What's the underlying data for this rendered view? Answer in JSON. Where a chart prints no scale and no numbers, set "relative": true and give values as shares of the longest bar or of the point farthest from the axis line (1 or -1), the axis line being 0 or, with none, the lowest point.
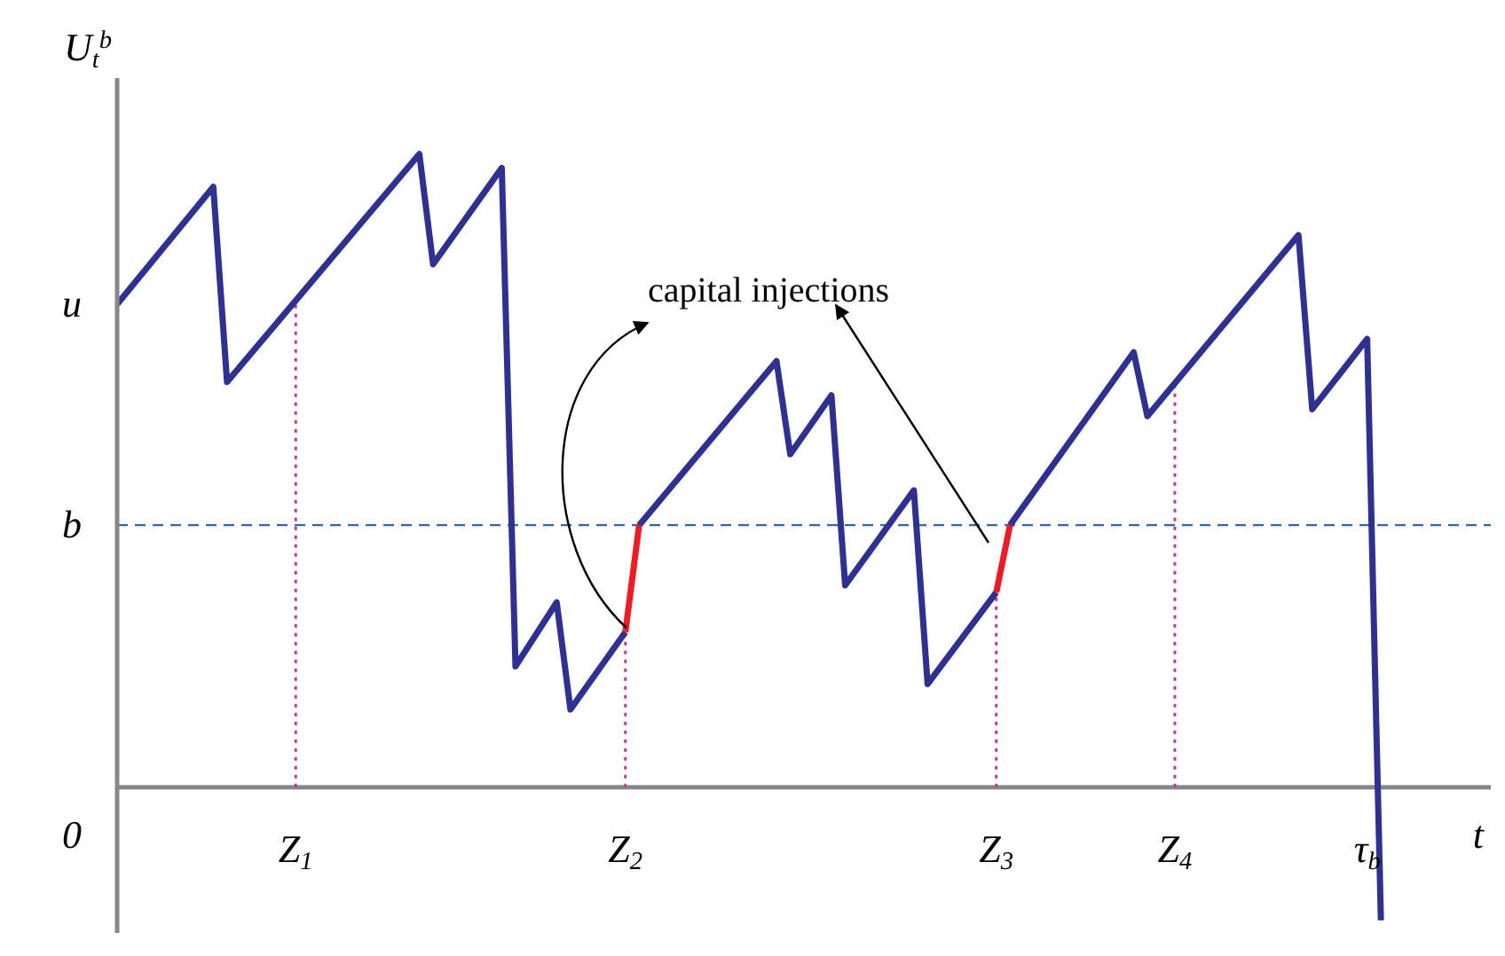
{
  "chart_data": {
    "type": "line",
    "relative": true,
    "xlabel": "t",
    "ylabel": "U$_{t}$$^{b}$",
    "categories": [
      null,
      null,
      null,
      null,
      null,
      null,
      null,
      null,
      null,
      null,
      null,
      null,
      null,
      "Z$_{1}$",
      null,
      null,
      null,
      null,
      null,
      null,
      null,
      null,
      null,
      null,
      null,
      null,
      null,
      null,
      null,
      null,
      null,
      null,
      null,
      null,
      null,
      null,
      null,
      "Z$_{2}$",
      null,
      null,
      null,
      null,
      null,
      null,
      null,
      null,
      null,
      null,
      null,
      null,
      null,
      null,
      null,
      null,
      null,
      null,
      null,
      null,
      null,
      null,
      null,
      null,
      null,
      null,
      "Z$_{3}$",
      null,
      null,
      null,
      null,
      null,
      null,
      null,
      null,
      null,
      null,
      null,
      null,
      "Z$_{4}$",
      null,
      null,
      null,
      null,
      null,
      null,
      null,
      null,
      null,
      null,
      null,
      null,
      null,
      "τ$_{b}$",
      null,
      null,
      null,
      null,
      null,
      null,
      null,
      null,
      null
    ],
    "marker": "none",
    "line_style": "solid",
    "series": [
      {
        "color": "#2e3192",
        "values": [
          0.763,
          null,
          null,
          null,
          null,
          null,
          null,
          0.948,
          0.64,
          null,
          null,
          null,
          null,
          null,
          null,
          null,
          null,
          null,
          null,
          null,
          null,
          null,
          1,
          0.826,
          null,
          null,
          null,
          null,
          0.978,
          0.191,
          null,
          null,
          0.292,
          0.123,
          null,
          null,
          null,
          0.245,
          null,
          null,
          null,
          null,
          null,
          null,
          null,
          null,
          null,
          null,
          null,
          null,
          null,
          null,
          null,
          null,
          null,
          null,
          null,
          null,
          null,
          null,
          null,
          null,
          null,
          null,
          null,
          null,
          null,
          null,
          null,
          null,
          null,
          null,
          null,
          null,
          null,
          null,
          null,
          null,
          null,
          null,
          null,
          null,
          null,
          null,
          null,
          null,
          null,
          null,
          null,
          null,
          null,
          null,
          null,
          null,
          null,
          null,
          null,
          null,
          null,
          null,
          null
        ]
      },
      {
        "color": "#2e3192",
        "values": [
          null,
          null,
          null,
          null,
          null,
          null,
          null,
          null,
          null,
          null,
          null,
          null,
          null,
          null,
          null,
          null,
          null,
          null,
          null,
          null,
          null,
          null,
          null,
          null,
          null,
          null,
          null,
          null,
          null,
          null,
          null,
          null,
          null,
          null,
          null,
          null,
          null,
          null,
          0.414,
          null,
          null,
          null,
          null,
          null,
          null,
          null,
          null,
          null,
          0.673,
          0.526,
          null,
          null,
          0.619,
          0.319,
          null,
          null,
          null,
          null,
          0.469,
          0.163,
          null,
          null,
          null,
          null,
          0.308,
          null,
          null,
          null,
          null,
          null,
          null,
          null,
          null,
          null,
          null,
          null,
          null,
          null,
          null,
          null,
          null,
          null,
          null,
          null,
          null,
          null,
          null,
          null,
          null,
          null,
          null,
          null,
          null,
          null,
          null,
          null,
          null,
          null,
          null,
          null,
          null
        ]
      },
      {
        "color": "#2e3192",
        "values": [
          null,
          null,
          null,
          null,
          null,
          null,
          null,
          null,
          null,
          null,
          null,
          null,
          null,
          null,
          null,
          null,
          null,
          null,
          null,
          null,
          null,
          null,
          null,
          null,
          null,
          null,
          null,
          null,
          null,
          null,
          null,
          null,
          null,
          null,
          null,
          null,
          null,
          null,
          null,
          null,
          null,
          null,
          null,
          null,
          null,
          null,
          null,
          null,
          null,
          null,
          null,
          null,
          null,
          null,
          null,
          null,
          null,
          null,
          null,
          null,
          null,
          null,
          null,
          null,
          null,
          0.414,
          null,
          null,
          null,
          null,
          null,
          null,
          null,
          null,
          0.687,
          0.586,
          null,
          null,
          null,
          null,
          null,
          null,
          null,
          null,
          null,
          null,
          0.872,
          0.597,
          null,
          null,
          null,
          0.708,
          -0.21,
          null,
          null,
          null,
          null,
          null,
          null,
          null,
          null
        ]
      },
      {
        "color": "#ed1c24",
        "values": [
          null,
          null,
          null,
          null,
          null,
          null,
          null,
          null,
          null,
          null,
          null,
          null,
          null,
          null,
          null,
          null,
          null,
          null,
          null,
          null,
          null,
          null,
          null,
          null,
          null,
          null,
          null,
          null,
          null,
          null,
          null,
          null,
          null,
          null,
          null,
          null,
          null,
          0.245,
          0.414,
          null,
          null,
          null,
          null,
          null,
          null,
          null,
          null,
          null,
          null,
          null,
          null,
          null,
          null,
          null,
          null,
          null,
          null,
          null,
          null,
          null,
          null,
          null,
          null,
          null,
          null,
          null,
          null,
          null,
          null,
          null,
          null,
          null,
          null,
          null,
          null,
          null,
          null,
          null,
          null,
          null,
          null,
          null,
          null,
          null,
          null,
          null,
          null,
          null,
          null,
          null,
          null,
          null,
          null,
          null,
          null,
          null,
          null,
          null,
          null,
          null,
          null
        ]
      },
      {
        "color": "#ed1c24",
        "values": [
          null,
          null,
          null,
          null,
          null,
          null,
          null,
          null,
          null,
          null,
          null,
          null,
          null,
          null,
          null,
          null,
          null,
          null,
          null,
          null,
          null,
          null,
          null,
          null,
          null,
          null,
          null,
          null,
          null,
          null,
          null,
          null,
          null,
          null,
          null,
          null,
          null,
          null,
          null,
          null,
          null,
          null,
          null,
          null,
          null,
          null,
          null,
          null,
          null,
          null,
          null,
          null,
          null,
          null,
          null,
          null,
          null,
          null,
          null,
          null,
          null,
          null,
          null,
          null,
          0.308,
          0.414,
          null,
          null,
          null,
          null,
          null,
          null,
          null,
          null,
          null,
          null,
          null,
          null,
          null,
          null,
          null,
          null,
          null,
          null,
          null,
          null,
          null,
          null,
          null,
          null,
          null,
          null,
          null,
          null,
          null,
          null,
          null,
          null,
          null,
          null,
          null
        ]
      }
    ],
    "ref_lines": [
      {
        "axis": "y",
        "value": 0.414,
        "label": "b",
        "color": "#2a6bb0",
        "line_style": "dashed"
      },
      {
        "axis": "x",
        "value": "Z$_{1}$",
        "color": "#c0399b",
        "line_style": "dotted"
      },
      {
        "axis": "x",
        "value": "Z$_{2}$",
        "color": "#c0399b",
        "line_style": "dotted"
      },
      {
        "axis": "x",
        "value": "Z$_{3}$",
        "color": "#c0399b",
        "line_style": "dotted"
      },
      {
        "axis": "x",
        "value": "Z$_{4}$",
        "color": "#c0399b",
        "line_style": "dotted"
      }
    ],
    "annotations": [
      "capital injections",
      "u",
      "0"
    ]
  }
}
